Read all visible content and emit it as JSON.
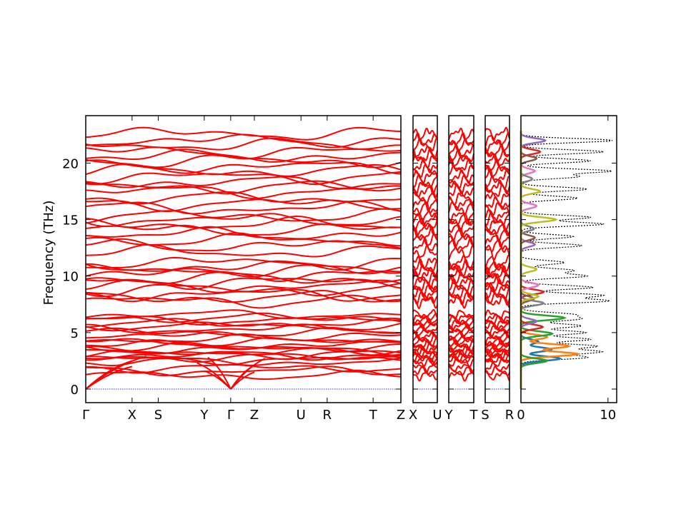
{
  "chart_data": {
    "type": "line",
    "ylabel": "Frequency (THz)",
    "ylim": [
      -1.2,
      24.2
    ],
    "yticks": [
      0,
      5,
      10,
      15,
      20
    ],
    "band_color": "#ff0000",
    "zero_line_color": "#3333cc",
    "band_frequencies": [
      1.2,
      1.6,
      1.9,
      2.4,
      2.6,
      2.8,
      3.0,
      3.1,
      3.3,
      3.5,
      3.7,
      3.9,
      4.2,
      4.4,
      4.7,
      5.0,
      5.3,
      5.6,
      5.8,
      6.1,
      6.3,
      6.6,
      7.8,
      8.1,
      8.4,
      8.8,
      9.1,
      9.5,
      9.8,
      10.2,
      10.5,
      10.8,
      11.2,
      12.1,
      12.7,
      13.2,
      13.7,
      14.1,
      14.6,
      15.0,
      15.3,
      16.0,
      16.4,
      16.9,
      17.5,
      17.9,
      18.3,
      18.8,
      19.3,
      19.7,
      20.2,
      20.6,
      21.0,
      21.6,
      22.0,
      22.6
    ],
    "panels": [
      {
        "ticks": [
          "Γ",
          "X",
          "S",
          "Y",
          "Γ",
          "Z",
          "U",
          "R",
          "T",
          "Z"
        ],
        "tick_positions": [
          0,
          0.147,
          0.23,
          0.376,
          0.46,
          0.535,
          0.683,
          0.766,
          0.912,
          1.0
        ]
      },
      {
        "ticks": [
          "X",
          "U"
        ],
        "tick_positions": [
          0,
          1.0
        ]
      },
      {
        "ticks": [
          "Y",
          "T"
        ],
        "tick_positions": [
          0,
          1.0
        ]
      },
      {
        "ticks": [
          "S",
          "R"
        ],
        "tick_positions": [
          0,
          1.0
        ]
      }
    ],
    "dos": {
      "xlim": [
        0,
        11
      ],
      "xticks": [
        0,
        10
      ],
      "xtick_labels": [
        "0",
        "10"
      ],
      "total_style": "dotted-black",
      "peaks": [
        {
          "f": 2.8,
          "h": 7.5
        },
        {
          "f": 3.3,
          "h": 9.0
        },
        {
          "f": 3.8,
          "h": 8.6
        },
        {
          "f": 4.4,
          "h": 8.0
        },
        {
          "f": 5.0,
          "h": 7.4
        },
        {
          "f": 5.6,
          "h": 6.9
        },
        {
          "f": 6.2,
          "h": 6.4
        },
        {
          "f": 6.6,
          "h": 5.8
        },
        {
          "f": 7.8,
          "h": 10.0
        },
        {
          "f": 8.3,
          "h": 9.3
        },
        {
          "f": 9.0,
          "h": 8.3
        },
        {
          "f": 10.0,
          "h": 7.5
        },
        {
          "f": 10.5,
          "h": 6.0
        },
        {
          "f": 11.2,
          "h": 5.0
        },
        {
          "f": 12.7,
          "h": 7.0
        },
        {
          "f": 13.5,
          "h": 6.0
        },
        {
          "f": 14.6,
          "h": 9.5
        },
        {
          "f": 15.2,
          "h": 8.0
        },
        {
          "f": 16.9,
          "h": 6.5
        },
        {
          "f": 17.7,
          "h": 7.6
        },
        {
          "f": 18.8,
          "h": 6.5
        },
        {
          "f": 19.3,
          "h": 10.3
        },
        {
          "f": 20.2,
          "h": 8.0
        },
        {
          "f": 21.0,
          "h": 9.5
        },
        {
          "f": 22.0,
          "h": 10.5
        }
      ],
      "partials": [
        {
          "color": "#1f77b4",
          "peaks": [
            {
              "f": 2.7,
              "h": 4.5
            },
            {
              "f": 3.5,
              "h": 3.5
            },
            {
              "f": 4.2,
              "h": 2.0
            }
          ]
        },
        {
          "color": "#ff7f0e",
          "peaks": [
            {
              "f": 3.1,
              "h": 6.5
            },
            {
              "f": 3.8,
              "h": 5.5
            },
            {
              "f": 4.6,
              "h": 3.0
            }
          ]
        },
        {
          "color": "#2ca02c",
          "peaks": [
            {
              "f": 2.5,
              "h": 3.0
            },
            {
              "f": 4.9,
              "h": 3.6
            },
            {
              "f": 6.3,
              "h": 5.0
            }
          ]
        },
        {
          "color": "#d62728",
          "peaks": [
            {
              "f": 5.5,
              "h": 2.5
            },
            {
              "f": 8.6,
              "h": 2.6
            },
            {
              "f": 21.0,
              "h": 2.2
            }
          ]
        },
        {
          "color": "#9467bd",
          "peaks": [
            {
              "f": 6.0,
              "h": 1.8
            },
            {
              "f": 12.8,
              "h": 1.6
            },
            {
              "f": 22.0,
              "h": 2.8
            }
          ]
        },
        {
          "color": "#8c564b",
          "peaks": [
            {
              "f": 8.0,
              "h": 1.5
            },
            {
              "f": 13.4,
              "h": 1.6
            },
            {
              "f": 20.4,
              "h": 1.8
            }
          ]
        },
        {
          "color": "#e377c2",
          "peaks": [
            {
              "f": 9.2,
              "h": 2.0
            },
            {
              "f": 16.2,
              "h": 1.8
            },
            {
              "f": 19.3,
              "h": 1.6
            }
          ]
        },
        {
          "color": "#7f7f7f",
          "peaks": [
            {
              "f": 7.6,
              "h": 2.6
            },
            {
              "f": 14.2,
              "h": 1.5
            },
            {
              "f": 18.6,
              "h": 1.3
            }
          ]
        },
        {
          "color": "#bcbd22",
          "peaks": [
            {
              "f": 8.2,
              "h": 2.0
            },
            {
              "f": 15.0,
              "h": 4.0
            },
            {
              "f": 17.5,
              "h": 2.2
            },
            {
              "f": 10.6,
              "h": 1.8
            }
          ]
        }
      ]
    }
  }
}
